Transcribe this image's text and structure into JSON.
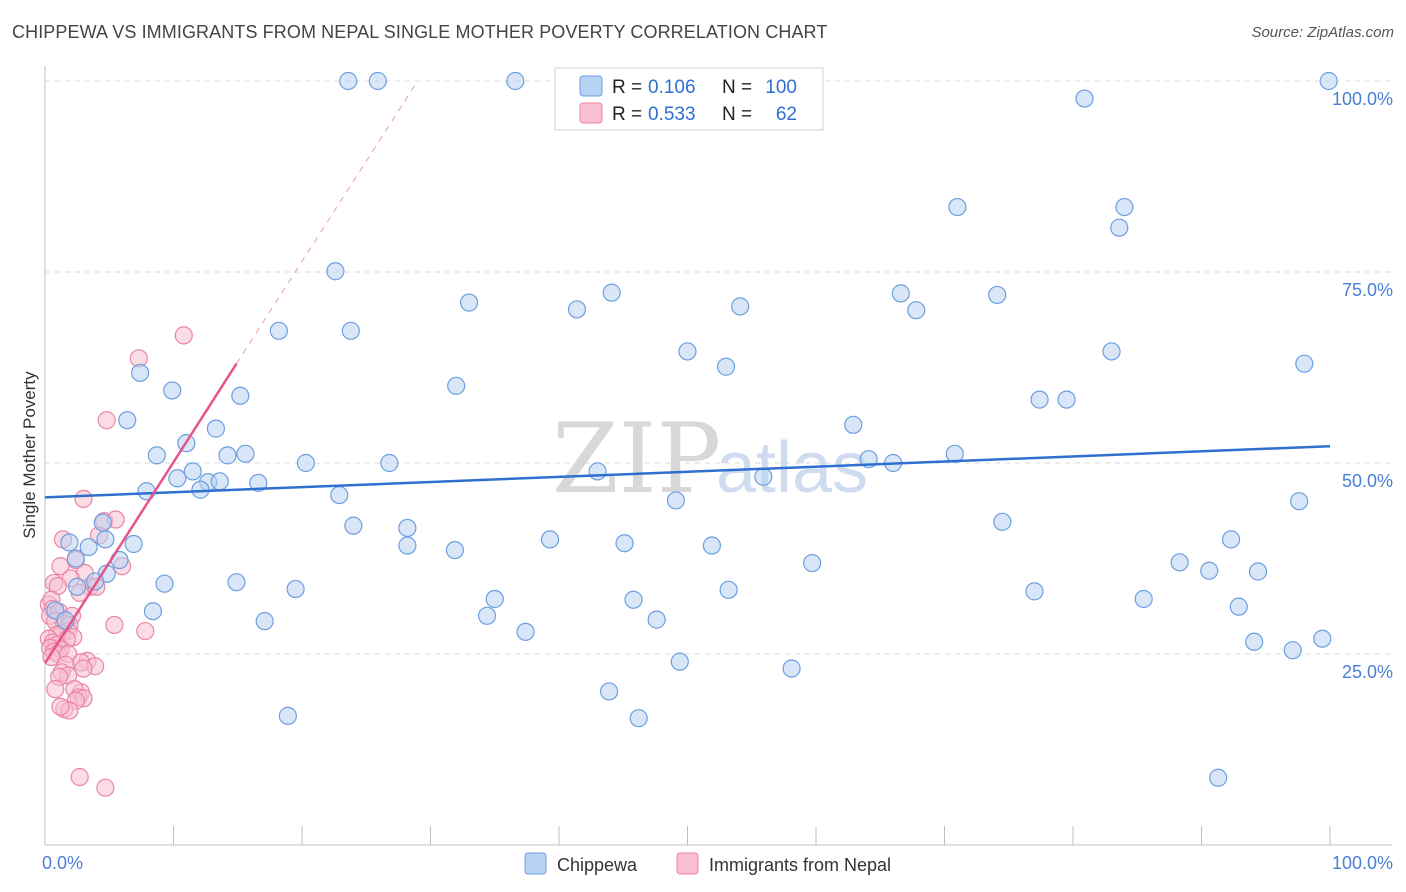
{
  "title": "CHIPPEWA VS IMMIGRANTS FROM NEPAL SINGLE MOTHER POVERTY CORRELATION CHART",
  "source": "Source: ZipAtlas.com",
  "watermark": {
    "zip": "ZIP",
    "atlas": "atlas"
  },
  "colors": {
    "chippewa_fill": "#b8d2f2",
    "chippewa_stroke": "#6d9fe0",
    "chippewa_line": "#2f6fcf",
    "nepal_fill": "#f7bfd0",
    "nepal_stroke": "#ea86a6",
    "nepal_line": "#e5558a",
    "grid": "#d9d9d9",
    "tick_text": "#4a7fd4"
  },
  "legend": {
    "rows": [
      {
        "r_label": "R =",
        "r_value": "0.106",
        "n_label": "N =",
        "n_value": "100"
      },
      {
        "r_label": "R =",
        "r_value": "0.533",
        "n_label": "N =",
        "n_value": "62"
      }
    ]
  },
  "bottom_legend": [
    "Chippewa",
    "Immigrants from Nepal"
  ],
  "chart_data": {
    "type": "scatter",
    "title": "CHIPPEWA VS IMMIGRANTS FROM NEPAL SINGLE MOTHER POVERTY CORRELATION CHART",
    "xlabel": "",
    "ylabel": "Single Mother Poverty",
    "xlim": [
      0,
      100
    ],
    "ylim": [
      0,
      102
    ],
    "x_tick_labels": [
      "0.0%",
      "100.0%"
    ],
    "y_ticks": [
      25,
      50,
      75,
      100
    ],
    "y_tick_labels": [
      "25.0%",
      "50.0%",
      "75.0%",
      "100.0%"
    ],
    "grid": "horizontal dashed",
    "legend_placement": "top-center",
    "series": [
      {
        "name": "Chippewa",
        "trend": {
          "x": [
            0,
            100
          ],
          "y": [
            45.5,
            52.2
          ]
        },
        "points": [
          [
            23.6,
            100
          ],
          [
            25.9,
            100
          ],
          [
            36.6,
            100
          ],
          [
            99.9,
            100
          ],
          [
            80.9,
            97.7
          ],
          [
            71.0,
            83.5
          ],
          [
            84.0,
            83.5
          ],
          [
            83.6,
            80.8
          ],
          [
            22.6,
            75.1
          ],
          [
            44.1,
            72.3
          ],
          [
            33.0,
            71.0
          ],
          [
            41.4,
            70.1
          ],
          [
            54.1,
            70.5
          ],
          [
            66.6,
            72.2
          ],
          [
            67.8,
            70.0
          ],
          [
            74.1,
            72.0
          ],
          [
            18.2,
            67.3
          ],
          [
            23.8,
            67.3
          ],
          [
            50.0,
            64.6
          ],
          [
            83.0,
            64.6
          ],
          [
            53.0,
            62.6
          ],
          [
            98.0,
            63.0
          ],
          [
            7.4,
            61.8
          ],
          [
            9.9,
            59.5
          ],
          [
            32.0,
            60.1
          ],
          [
            15.2,
            58.8
          ],
          [
            77.4,
            58.3
          ],
          [
            79.5,
            58.3
          ],
          [
            6.4,
            55.6
          ],
          [
            13.3,
            54.5
          ],
          [
            62.9,
            55.0
          ],
          [
            11.0,
            52.6
          ],
          [
            14.2,
            51.0
          ],
          [
            15.6,
            51.2
          ],
          [
            8.7,
            51.0
          ],
          [
            26.8,
            50.0
          ],
          [
            20.3,
            50.0
          ],
          [
            64.1,
            50.5
          ],
          [
            66.0,
            50.0
          ],
          [
            70.8,
            51.2
          ],
          [
            43.0,
            48.9
          ],
          [
            55.9,
            48.2
          ],
          [
            10.3,
            48.0
          ],
          [
            11.5,
            48.9
          ],
          [
            12.7,
            47.5
          ],
          [
            13.6,
            47.6
          ],
          [
            16.6,
            47.4
          ],
          [
            12.1,
            46.5
          ],
          [
            7.9,
            46.3
          ],
          [
            22.9,
            45.8
          ],
          [
            49.1,
            45.1
          ],
          [
            97.6,
            45.0
          ],
          [
            4.5,
            42.2
          ],
          [
            24.0,
            41.8
          ],
          [
            28.2,
            41.5
          ],
          [
            74.5,
            42.3
          ],
          [
            1.9,
            39.6
          ],
          [
            3.4,
            39.0
          ],
          [
            4.7,
            40.0
          ],
          [
            6.9,
            39.4
          ],
          [
            28.2,
            39.2
          ],
          [
            31.9,
            38.6
          ],
          [
            39.3,
            40.0
          ],
          [
            45.1,
            39.5
          ],
          [
            51.9,
            39.2
          ],
          [
            92.3,
            40.0
          ],
          [
            2.4,
            37.5
          ],
          [
            5.8,
            37.3
          ],
          [
            59.7,
            36.9
          ],
          [
            88.3,
            37.0
          ],
          [
            90.6,
            35.9
          ],
          [
            94.4,
            35.8
          ],
          [
            4.8,
            35.5
          ],
          [
            3.9,
            34.5
          ],
          [
            2.5,
            33.8
          ],
          [
            9.3,
            34.2
          ],
          [
            14.9,
            34.4
          ],
          [
            19.5,
            33.5
          ],
          [
            53.2,
            33.4
          ],
          [
            77.0,
            33.2
          ],
          [
            35.0,
            32.2
          ],
          [
            45.8,
            32.1
          ],
          [
            85.5,
            32.2
          ],
          [
            92.9,
            31.2
          ],
          [
            8.4,
            30.6
          ],
          [
            34.4,
            30.0
          ],
          [
            47.6,
            29.5
          ],
          [
            17.1,
            29.3
          ],
          [
            37.4,
            27.9
          ],
          [
            94.1,
            26.6
          ],
          [
            99.4,
            27.0
          ],
          [
            97.1,
            25.5
          ],
          [
            49.4,
            24.0
          ],
          [
            58.1,
            23.1
          ],
          [
            43.9,
            20.1
          ],
          [
            18.9,
            16.9
          ],
          [
            46.2,
            16.6
          ],
          [
            91.3,
            8.8
          ],
          [
            0.8,
            30.7
          ],
          [
            1.6,
            29.4
          ]
        ]
      },
      {
        "name": "Immigrants from Nepal",
        "trend": {
          "x": [
            0,
            14.9
          ],
          "y": [
            23.8,
            63.0
          ]
        },
        "trend_extension": {
          "x": [
            14.9,
            29.0
          ],
          "y": [
            63.0,
            100.0
          ]
        },
        "points": [
          [
            10.8,
            66.7
          ],
          [
            7.3,
            63.7
          ],
          [
            4.8,
            55.6
          ],
          [
            3.0,
            45.3
          ],
          [
            4.6,
            42.4
          ],
          [
            5.5,
            42.6
          ],
          [
            1.4,
            40.0
          ],
          [
            4.2,
            40.5
          ],
          [
            6.0,
            36.5
          ],
          [
            1.2,
            36.5
          ],
          [
            2.4,
            37.3
          ],
          [
            3.1,
            35.6
          ],
          [
            2.0,
            34.9
          ],
          [
            0.7,
            34.3
          ],
          [
            1.0,
            33.9
          ],
          [
            3.5,
            33.8
          ],
          [
            4.0,
            33.8
          ],
          [
            2.7,
            33.0
          ],
          [
            0.3,
            31.5
          ],
          [
            0.5,
            32.1
          ],
          [
            0.6,
            30.9
          ],
          [
            0.4,
            30.0
          ],
          [
            1.1,
            30.5
          ],
          [
            2.1,
            30.0
          ],
          [
            0.8,
            29.3
          ],
          [
            1.5,
            29.0
          ],
          [
            1.9,
            28.8
          ],
          [
            5.4,
            28.8
          ],
          [
            7.8,
            28.0
          ],
          [
            1.8,
            28.0
          ],
          [
            1.3,
            27.7
          ],
          [
            0.9,
            27.5
          ],
          [
            2.2,
            27.2
          ],
          [
            1.7,
            26.9
          ],
          [
            0.3,
            27.0
          ],
          [
            0.6,
            26.5
          ],
          [
            0.9,
            26.2
          ],
          [
            0.4,
            25.8
          ],
          [
            1.2,
            25.6
          ],
          [
            0.7,
            25.3
          ],
          [
            1.0,
            25.0
          ],
          [
            1.8,
            25.0
          ],
          [
            0.5,
            24.6
          ],
          [
            3.3,
            24.1
          ],
          [
            2.8,
            23.9
          ],
          [
            1.6,
            23.6
          ],
          [
            3.9,
            23.4
          ],
          [
            3.0,
            23.1
          ],
          [
            1.3,
            22.6
          ],
          [
            1.8,
            22.2
          ],
          [
            1.1,
            22.0
          ],
          [
            0.8,
            20.4
          ],
          [
            2.8,
            20.0
          ],
          [
            2.3,
            20.4
          ],
          [
            2.6,
            19.3
          ],
          [
            3.0,
            19.2
          ],
          [
            2.4,
            18.9
          ],
          [
            1.5,
            17.8
          ],
          [
            1.9,
            17.6
          ],
          [
            1.2,
            18.1
          ],
          [
            2.7,
            8.9
          ],
          [
            4.7,
            7.5
          ]
        ]
      }
    ]
  }
}
